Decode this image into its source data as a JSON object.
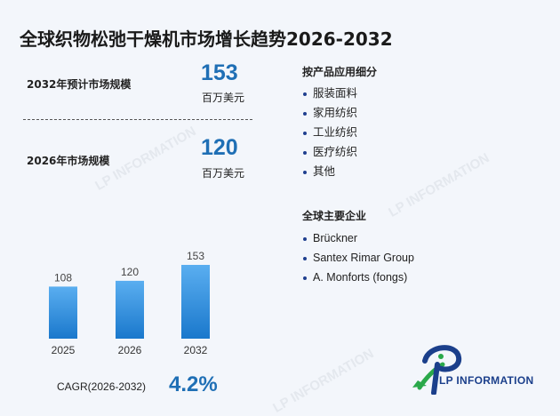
{
  "title": "全球织物松弛干燥机市场增长趋势2026-2032",
  "stats": [
    {
      "label": "2032年预计市场规模",
      "value": "153",
      "unit": "百万美元"
    },
    {
      "label": "2026年市场规模",
      "value": "120",
      "unit": "百万美元"
    }
  ],
  "applications": {
    "heading": "按产品应用细分",
    "items": [
      "服装面料",
      "家用纺织",
      "工业纺织",
      "医疗纺织",
      "其他"
    ]
  },
  "companies": {
    "heading": "全球主要企业",
    "items": [
      "Brückner",
      "Santex Rimar Group",
      "A. Monforts (fongs)"
    ]
  },
  "chart_data": {
    "type": "bar",
    "categories": [
      "2025",
      "2026",
      "2032"
    ],
    "values": [
      108,
      120,
      153
    ],
    "title": "",
    "xlabel": "",
    "ylabel": "",
    "colors": {
      "bar_top": "#5aaef0",
      "bar_bottom": "#1a78cc"
    }
  },
  "cagr": {
    "label": "CAGR(2026-2032)",
    "value": "4.2%"
  },
  "logo": {
    "text": "LP INFORMATION",
    "watermark": "LP INFORMATION",
    "colors": {
      "blue": "#1b3f8b",
      "green": "#2aa84a"
    }
  }
}
